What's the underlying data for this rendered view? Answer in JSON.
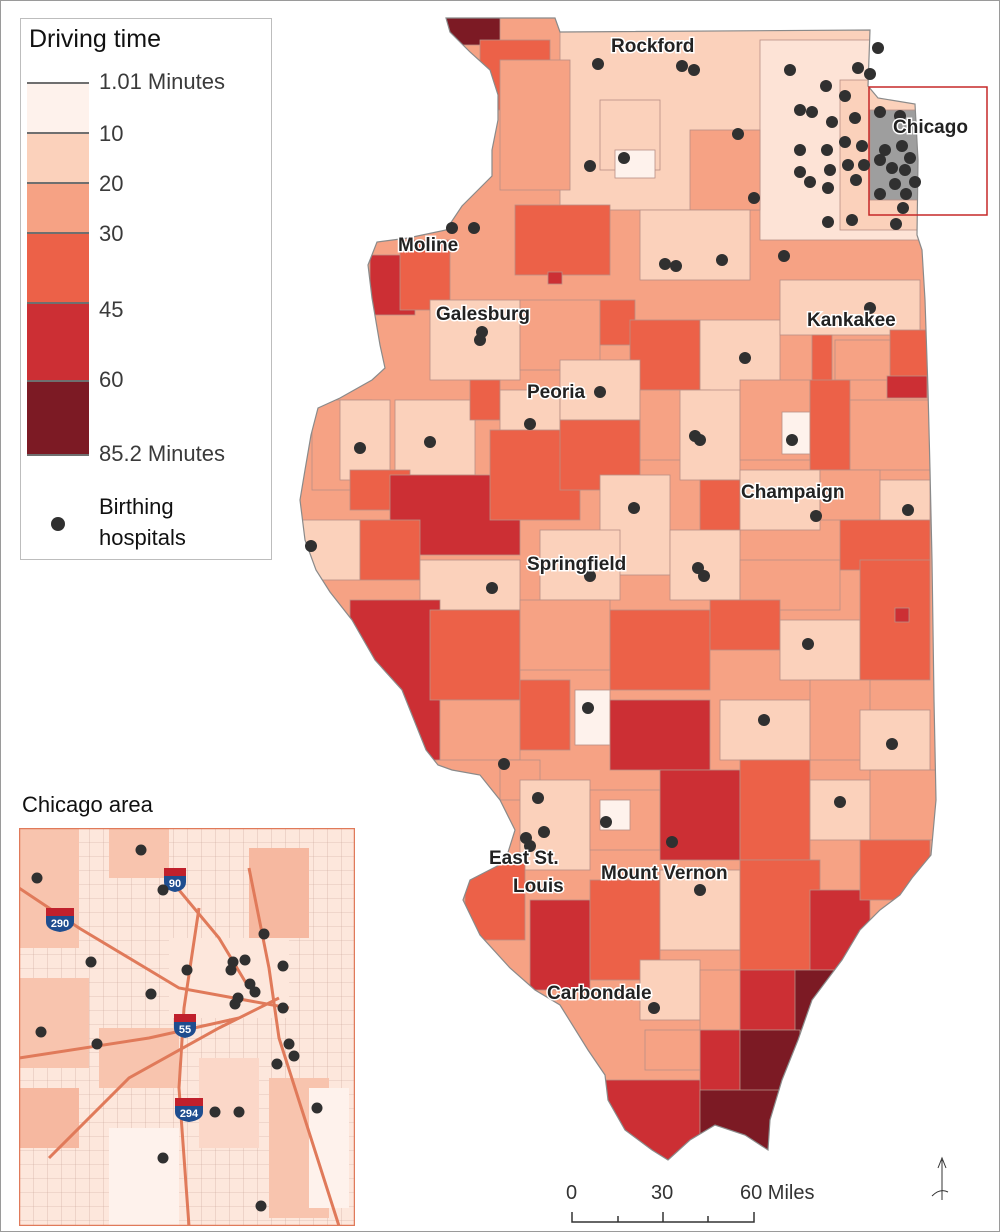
{
  "legend": {
    "title": "Driving time",
    "breaks": [
      "1.01 Minutes",
      "10",
      "20",
      "30",
      "45",
      "60",
      "85.2 Minutes"
    ],
    "colors": [
      "#fef2ec",
      "#fbd1bb",
      "#f6a284",
      "#ec6148",
      "#cc2f34",
      "#7c1a24"
    ],
    "hospitals_label_line1": "Birthing",
    "hospitals_label_line2": "hospitals"
  },
  "cities": [
    {
      "name": "Rockford"
    },
    {
      "name": "Chicago"
    },
    {
      "name": "Moline"
    },
    {
      "name": "Galesburg"
    },
    {
      "name": "Kankakee"
    },
    {
      "name": "Peoria"
    },
    {
      "name": "Champaign"
    },
    {
      "name": "Springfield"
    },
    {
      "name": "East St."
    },
    {
      "name": "Louis"
    },
    {
      "name": "Mount Vernon"
    },
    {
      "name": "Carbondale"
    }
  ],
  "inset": {
    "title": "Chicago area",
    "highways": [
      "90",
      "290",
      "55",
      "294"
    ],
    "highway_colors": {
      "shield_top": "#c0202c",
      "shield_body": "#1f4d8f"
    }
  },
  "scalebar": {
    "labels": [
      "0",
      "30",
      "60 Miles"
    ]
  },
  "north_arrow": "north-arrow",
  "hospital_color": "#303030",
  "outline_color": "#c62828"
}
